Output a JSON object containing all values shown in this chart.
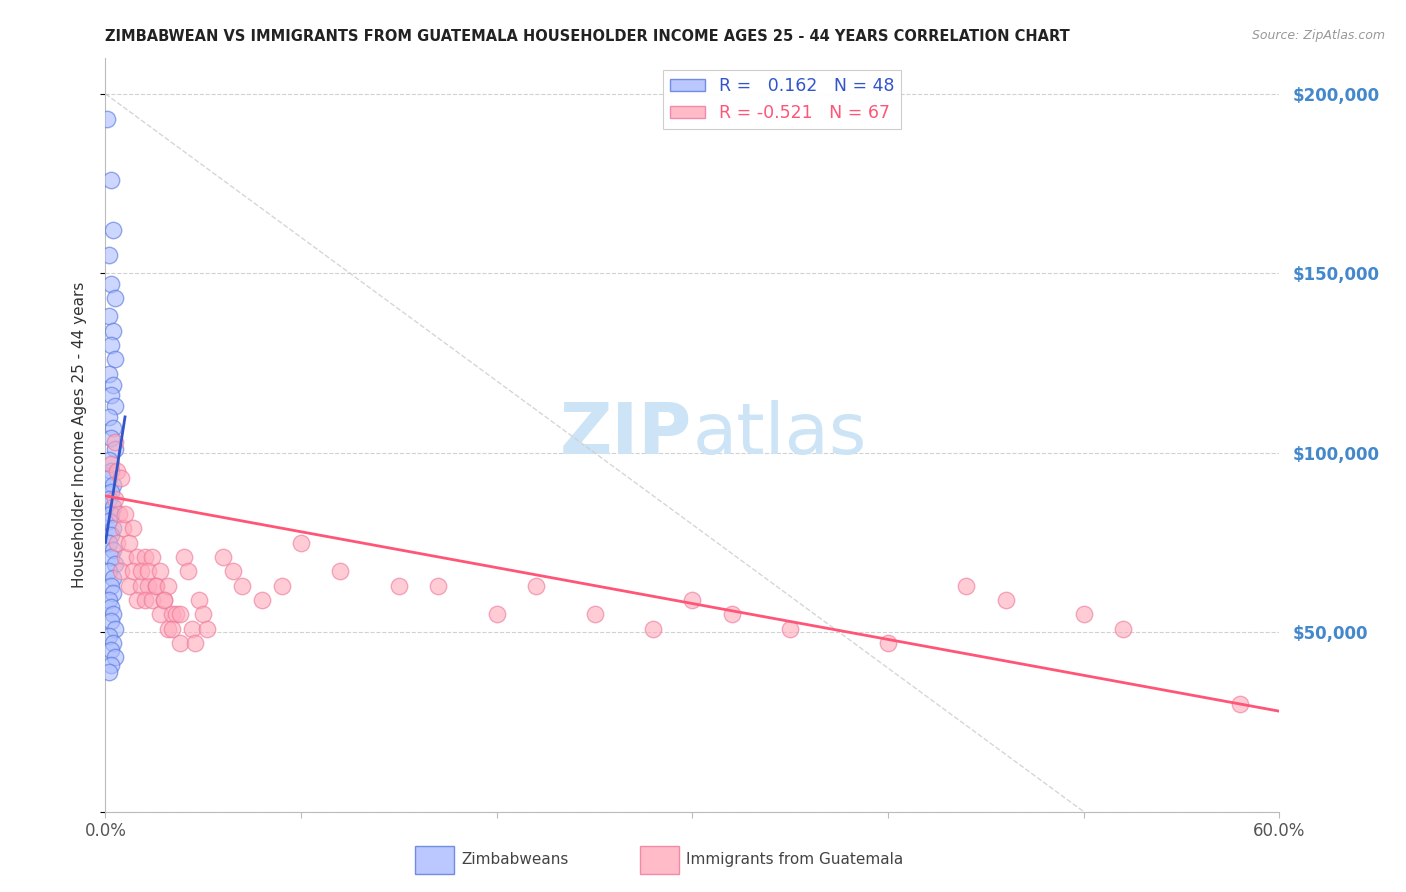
{
  "title": "ZIMBABWEAN VS IMMIGRANTS FROM GUATEMALA HOUSEHOLDER INCOME AGES 25 - 44 YEARS CORRELATION CHART",
  "source": "Source: ZipAtlas.com",
  "ylabel": "Householder Income Ages 25 - 44 years",
  "y_ticks": [
    0,
    50000,
    100000,
    150000,
    200000
  ],
  "x_min": 0.0,
  "x_max": 0.6,
  "y_min": 0,
  "y_max": 210000,
  "legend_r_blue": " 0.162",
  "legend_n_blue": "48",
  "legend_r_pink": "-0.521",
  "legend_n_pink": "67",
  "blue_fill": "#aabbff",
  "blue_edge": "#5577dd",
  "pink_fill": "#ffaabb",
  "pink_edge": "#ee7799",
  "blue_line_color": "#3355cc",
  "pink_line_color": "#ff5577",
  "diag_line_color": "#cccccc",
  "title_color": "#222222",
  "right_tick_color": "#4488cc",
  "watermark_color": "#cce4f5",
  "blue_scatter": [
    [
      0.001,
      193000
    ],
    [
      0.003,
      176000
    ],
    [
      0.004,
      162000
    ],
    [
      0.002,
      155000
    ],
    [
      0.003,
      147000
    ],
    [
      0.005,
      143000
    ],
    [
      0.002,
      138000
    ],
    [
      0.004,
      134000
    ],
    [
      0.003,
      130000
    ],
    [
      0.005,
      126000
    ],
    [
      0.002,
      122000
    ],
    [
      0.004,
      119000
    ],
    [
      0.003,
      116000
    ],
    [
      0.005,
      113000
    ],
    [
      0.002,
      110000
    ],
    [
      0.004,
      107000
    ],
    [
      0.003,
      104000
    ],
    [
      0.005,
      101000
    ],
    [
      0.002,
      98000
    ],
    [
      0.003,
      95000
    ],
    [
      0.002,
      93000
    ],
    [
      0.004,
      91000
    ],
    [
      0.003,
      89000
    ],
    [
      0.002,
      87000
    ],
    [
      0.004,
      85000
    ],
    [
      0.003,
      83000
    ],
    [
      0.002,
      81000
    ],
    [
      0.004,
      79000
    ],
    [
      0.003,
      77000
    ],
    [
      0.002,
      75000
    ],
    [
      0.004,
      73000
    ],
    [
      0.003,
      71000
    ],
    [
      0.005,
      69000
    ],
    [
      0.002,
      67000
    ],
    [
      0.004,
      65000
    ],
    [
      0.003,
      63000
    ],
    [
      0.004,
      61000
    ],
    [
      0.002,
      59000
    ],
    [
      0.003,
      57000
    ],
    [
      0.004,
      55000
    ],
    [
      0.003,
      53000
    ],
    [
      0.005,
      51000
    ],
    [
      0.002,
      49000
    ],
    [
      0.004,
      47000
    ],
    [
      0.003,
      45000
    ],
    [
      0.005,
      43000
    ],
    [
      0.003,
      41000
    ],
    [
      0.002,
      39000
    ]
  ],
  "pink_scatter": [
    [
      0.003,
      97000
    ],
    [
      0.005,
      103000
    ],
    [
      0.006,
      95000
    ],
    [
      0.008,
      93000
    ],
    [
      0.005,
      87000
    ],
    [
      0.007,
      83000
    ],
    [
      0.009,
      79000
    ],
    [
      0.006,
      75000
    ],
    [
      0.01,
      71000
    ],
    [
      0.008,
      67000
    ],
    [
      0.012,
      63000
    ],
    [
      0.01,
      83000
    ],
    [
      0.014,
      79000
    ],
    [
      0.012,
      75000
    ],
    [
      0.016,
      71000
    ],
    [
      0.014,
      67000
    ],
    [
      0.018,
      63000
    ],
    [
      0.016,
      59000
    ],
    [
      0.02,
      71000
    ],
    [
      0.018,
      67000
    ],
    [
      0.022,
      63000
    ],
    [
      0.02,
      59000
    ],
    [
      0.024,
      71000
    ],
    [
      0.022,
      67000
    ],
    [
      0.026,
      63000
    ],
    [
      0.024,
      59000
    ],
    [
      0.028,
      67000
    ],
    [
      0.026,
      63000
    ],
    [
      0.03,
      59000
    ],
    [
      0.028,
      55000
    ],
    [
      0.032,
      63000
    ],
    [
      0.03,
      59000
    ],
    [
      0.034,
      55000
    ],
    [
      0.032,
      51000
    ],
    [
      0.036,
      55000
    ],
    [
      0.034,
      51000
    ],
    [
      0.038,
      47000
    ],
    [
      0.04,
      71000
    ],
    [
      0.042,
      67000
    ],
    [
      0.038,
      55000
    ],
    [
      0.044,
      51000
    ],
    [
      0.046,
      47000
    ],
    [
      0.048,
      59000
    ],
    [
      0.05,
      55000
    ],
    [
      0.052,
      51000
    ],
    [
      0.06,
      71000
    ],
    [
      0.065,
      67000
    ],
    [
      0.07,
      63000
    ],
    [
      0.08,
      59000
    ],
    [
      0.09,
      63000
    ],
    [
      0.1,
      75000
    ],
    [
      0.12,
      67000
    ],
    [
      0.15,
      63000
    ],
    [
      0.17,
      63000
    ],
    [
      0.2,
      55000
    ],
    [
      0.22,
      63000
    ],
    [
      0.25,
      55000
    ],
    [
      0.28,
      51000
    ],
    [
      0.3,
      59000
    ],
    [
      0.32,
      55000
    ],
    [
      0.35,
      51000
    ],
    [
      0.4,
      47000
    ],
    [
      0.44,
      63000
    ],
    [
      0.46,
      59000
    ],
    [
      0.5,
      55000
    ],
    [
      0.52,
      51000
    ],
    [
      0.58,
      30000
    ]
  ],
  "blue_trend_x": [
    0.0,
    0.01
  ],
  "blue_trend_y": [
    75000,
    110000
  ],
  "pink_trend_x": [
    0.0,
    0.6
  ],
  "pink_trend_y": [
    88000,
    28000
  ]
}
